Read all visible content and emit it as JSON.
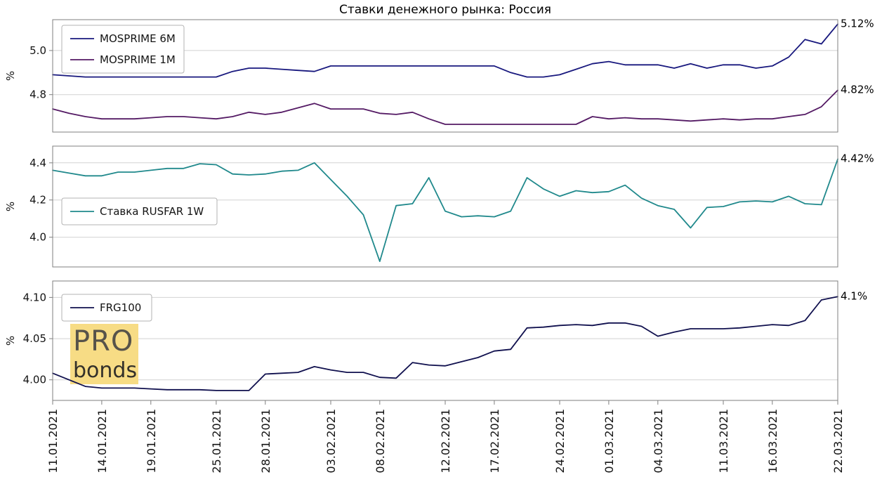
{
  "title": "Ставки денежного рынка: Россия",
  "watermark": {
    "line1": "PRO",
    "line2": "bonds"
  },
  "colors": {
    "mosprime_6m": "#18187e",
    "mosprime_1m": "#541a64",
    "rusfar_1w": "#20898c",
    "frg100": "#10104e",
    "grid": "#d2d2d2",
    "spine": "#7f7f7f",
    "text": "#141414",
    "annotation": "#000000",
    "legend_border": "#b3b3b3",
    "watermark_bg": "#f7dc85",
    "watermark_pro": "#57534a",
    "watermark_bonds": "#34312a"
  },
  "x_axis": {
    "tick_labels": [
      "11.01.2021",
      "14.01.2021",
      "19.01.2021",
      "25.01.2021",
      "28.01.2021",
      "03.02.2021",
      "08.02.2021",
      "12.02.2021",
      "17.02.2021",
      "24.02.2021",
      "01.03.2021",
      "04.03.2021",
      "11.03.2021",
      "16.03.2021",
      "22.03.2021"
    ],
    "tick_indices": [
      0,
      3,
      6,
      10,
      13,
      17,
      20,
      24,
      27,
      31,
      34,
      37,
      41,
      44,
      48
    ],
    "n_points": 49
  },
  "chart_data": [
    {
      "type": "line",
      "title": "",
      "xlabel": "",
      "ylabel": "%",
      "ylim": [
        4.63,
        5.14
      ],
      "yticks": [
        4.8,
        5.0
      ],
      "ytick_labels": [
        "4.8",
        "5.0"
      ],
      "grid": "horizontal",
      "legend_position": "upper-left",
      "legend": [
        "MOSPRIME 6M",
        "MOSPRIME 1M"
      ],
      "annotations": [
        {
          "label": "5.12%",
          "value": 5.12
        },
        {
          "label": "4.82%",
          "value": 4.82
        }
      ],
      "series": [
        {
          "name": "MOSPRIME 6M",
          "color": "mosprime_6m",
          "values": [
            4.89,
            4.885,
            4.88,
            4.88,
            4.88,
            4.88,
            4.88,
            4.88,
            4.88,
            4.88,
            4.88,
            4.905,
            4.92,
            4.92,
            4.915,
            4.91,
            4.905,
            4.93,
            4.93,
            4.93,
            4.93,
            4.93,
            4.93,
            4.93,
            4.93,
            4.93,
            4.93,
            4.93,
            4.9,
            4.88,
            4.88,
            4.89,
            4.915,
            4.94,
            4.95,
            4.935,
            4.935,
            4.935,
            4.92,
            4.94,
            4.92,
            4.935,
            4.935,
            4.92,
            4.93,
            4.97,
            5.05,
            5.03,
            5.12
          ]
        },
        {
          "name": "MOSPRIME 1M",
          "color": "mosprime_1m",
          "values": [
            4.735,
            4.715,
            4.7,
            4.69,
            4.69,
            4.69,
            4.695,
            4.7,
            4.7,
            4.695,
            4.69,
            4.7,
            4.72,
            4.71,
            4.72,
            4.74,
            4.76,
            4.735,
            4.735,
            4.735,
            4.715,
            4.71,
            4.72,
            4.69,
            4.665,
            4.665,
            4.665,
            4.665,
            4.665,
            4.665,
            4.665,
            4.665,
            4.665,
            4.7,
            4.69,
            4.695,
            4.69,
            4.69,
            4.685,
            4.68,
            4.685,
            4.69,
            4.685,
            4.69,
            4.69,
            4.7,
            4.71,
            4.745,
            4.82
          ]
        }
      ]
    },
    {
      "type": "line",
      "title": "",
      "xlabel": "",
      "ylabel": "%",
      "ylim": [
        3.84,
        4.49
      ],
      "yticks": [
        4.0,
        4.2,
        4.4
      ],
      "ytick_labels": [
        "4.0",
        "4.2",
        "4.4"
      ],
      "grid": "horizontal",
      "legend_position": "center-left",
      "legend": [
        "Ставка RUSFAR 1W"
      ],
      "annotations": [
        {
          "label": "4.42%",
          "value": 4.42
        }
      ],
      "series": [
        {
          "name": "Ставка RUSFAR 1W",
          "color": "rusfar_1w",
          "values": [
            4.36,
            4.345,
            4.33,
            4.33,
            4.35,
            4.35,
            4.36,
            4.37,
            4.37,
            4.395,
            4.39,
            4.34,
            4.335,
            4.34,
            4.355,
            4.36,
            4.4,
            4.31,
            4.22,
            4.12,
            3.87,
            4.17,
            4.18,
            4.32,
            4.14,
            4.11,
            4.115,
            4.11,
            4.14,
            4.32,
            4.26,
            4.22,
            4.25,
            4.24,
            4.245,
            4.28,
            4.21,
            4.17,
            4.15,
            4.05,
            4.16,
            4.165,
            4.19,
            4.195,
            4.19,
            4.22,
            4.18,
            4.175,
            4.42
          ]
        }
      ]
    },
    {
      "type": "line",
      "title": "",
      "xlabel": "",
      "ylabel": "%",
      "ylim": [
        3.975,
        4.12
      ],
      "yticks": [
        4.0,
        4.05,
        4.1
      ],
      "ytick_labels": [
        "4.00",
        "4.05",
        "4.10"
      ],
      "grid": "horizontal",
      "legend_position": "upper-left",
      "legend": [
        "FRG100"
      ],
      "annotations": [
        {
          "label": "4.1%",
          "value": 4.101
        }
      ],
      "series": [
        {
          "name": "FRG100",
          "color": "frg100",
          "values": [
            4.008,
            4.0,
            3.992,
            3.99,
            3.99,
            3.99,
            3.989,
            3.988,
            3.988,
            3.988,
            3.987,
            3.987,
            3.987,
            4.007,
            4.008,
            4.009,
            4.016,
            4.012,
            4.009,
            4.009,
            4.003,
            4.002,
            4.021,
            4.018,
            4.017,
            4.022,
            4.027,
            4.035,
            4.037,
            4.063,
            4.064,
            4.066,
            4.067,
            4.066,
            4.069,
            4.069,
            4.065,
            4.053,
            4.058,
            4.062,
            4.062,
            4.062,
            4.063,
            4.065,
            4.067,
            4.066,
            4.072,
            4.097,
            4.101
          ]
        }
      ]
    }
  ]
}
